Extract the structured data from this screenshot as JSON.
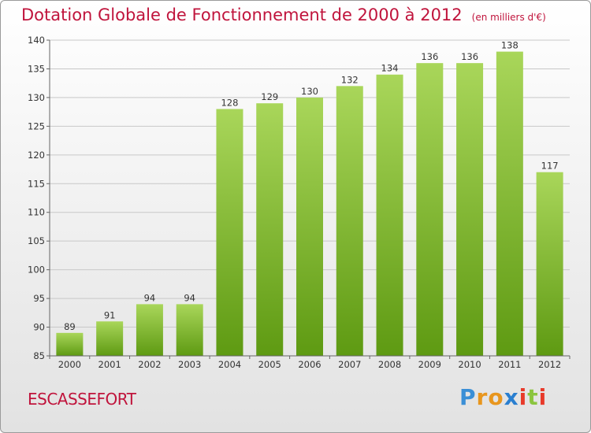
{
  "title": "Dotation Globale de Fonctionnement de 2000 à 2012",
  "unit_note": "(en milliers d'€)",
  "commune": "ESCASSEFORT",
  "logo": {
    "letters": [
      "P",
      "r",
      "o",
      "x",
      "i",
      "t",
      "i"
    ],
    "colors": [
      "#3a8fd6",
      "#e8961e",
      "#e8961e",
      "#2a7fd0",
      "#e83a2a",
      "#8bc53f",
      "#e83a2a"
    ]
  },
  "colors": {
    "bar_light": "#a9d65a",
    "bar_dark": "#5e9a12",
    "grid": "#c8c8c8",
    "title": "#c0143c"
  },
  "chart_data": {
    "type": "bar",
    "title": "Dotation Globale de Fonctionnement de 2000 à 2012",
    "subtitle": "(en milliers d'€)",
    "categories": [
      "2000",
      "2001",
      "2002",
      "2003",
      "2004",
      "2005",
      "2006",
      "2007",
      "2008",
      "2009",
      "2010",
      "2011",
      "2012"
    ],
    "values": [
      89,
      91,
      94,
      94,
      128,
      129,
      130,
      132,
      134,
      136,
      136,
      138,
      117
    ],
    "ylim": [
      85,
      140
    ],
    "yticks": [
      85,
      90,
      95,
      100,
      105,
      110,
      115,
      120,
      125,
      130,
      135,
      140
    ],
    "grid": true,
    "xlabel": "",
    "ylabel": ""
  }
}
